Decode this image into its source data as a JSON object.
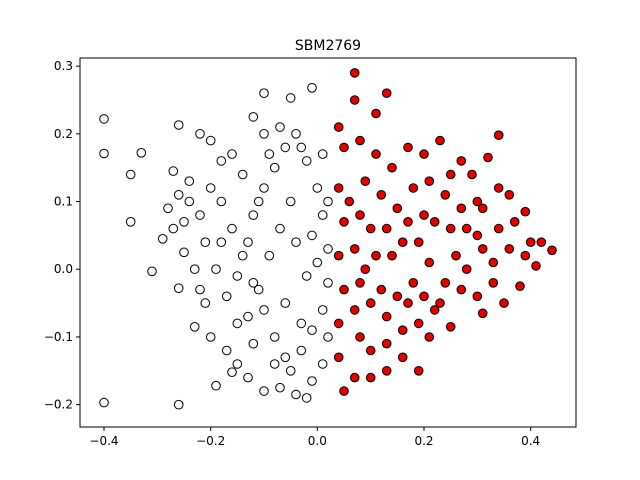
{
  "chart_data": {
    "type": "scatter",
    "title": "SBM2769",
    "xlabel": "",
    "ylabel": "",
    "xlim": [
      -0.445,
      0.485
    ],
    "ylim": [
      -0.233,
      0.312
    ],
    "x_ticks": [
      -0.4,
      -0.2,
      0.0,
      0.2,
      0.4
    ],
    "x_tick_labels": [
      "−0.4",
      "−0.2",
      "0.0",
      "0.2",
      "0.4"
    ],
    "y_ticks": [
      -0.2,
      -0.1,
      0.0,
      0.1,
      0.2,
      0.3
    ],
    "y_tick_labels": [
      "−0.2",
      "−0.1",
      "0.0",
      "0.1",
      "0.2",
      "0.3"
    ],
    "grid": false,
    "legend": "none",
    "colors": {
      "cluster_white": "#ffffff",
      "cluster_red": "#e00000",
      "edge": "#000000"
    },
    "series": [
      {
        "color": "#ffffff",
        "points": [
          [
            -0.4,
            -0.197
          ],
          [
            -0.4,
            0.222
          ],
          [
            -0.4,
            0.171
          ],
          [
            -0.35,
            0.14
          ],
          [
            -0.35,
            0.07
          ],
          [
            -0.33,
            0.172
          ],
          [
            -0.31,
            -0.003
          ],
          [
            -0.26,
            -0.2
          ],
          [
            -0.26,
            -0.028
          ],
          [
            -0.19,
            -0.172
          ],
          [
            -0.16,
            -0.152
          ],
          [
            -0.12,
            0.225
          ],
          [
            -0.1,
            0.26
          ],
          [
            -0.05,
            0.253
          ],
          [
            -0.01,
            0.268
          ],
          [
            -0.26,
            0.213
          ],
          [
            -0.27,
            0.145
          ],
          [
            -0.28,
            0.09
          ],
          [
            -0.29,
            0.045
          ],
          [
            -0.27,
            0.06
          ],
          [
            -0.25,
            0.025
          ],
          [
            -0.24,
            0.13
          ],
          [
            -0.22,
            0.2
          ],
          [
            -0.2,
            0.19
          ],
          [
            -0.18,
            0.16
          ],
          [
            -0.23,
            -0.085
          ],
          [
            -0.21,
            -0.05
          ],
          [
            -0.2,
            -0.1
          ],
          [
            -0.17,
            -0.12
          ],
          [
            -0.15,
            -0.14
          ],
          [
            -0.13,
            -0.16
          ],
          [
            -0.1,
            -0.18
          ],
          [
            -0.07,
            -0.175
          ],
          [
            -0.04,
            -0.185
          ],
          [
            -0.02,
            -0.19
          ],
          [
            -0.01,
            -0.165
          ],
          [
            -0.05,
            -0.15
          ],
          [
            -0.08,
            -0.14
          ],
          [
            -0.12,
            -0.11
          ],
          [
            -0.15,
            -0.08
          ],
          [
            -0.17,
            -0.04
          ],
          [
            -0.19,
            0.0
          ],
          [
            -0.21,
            0.04
          ],
          [
            -0.22,
            0.08
          ],
          [
            -0.2,
            0.12
          ],
          [
            -0.18,
            0.1
          ],
          [
            -0.16,
            0.06
          ],
          [
            -0.14,
            0.02
          ],
          [
            -0.12,
            -0.02
          ],
          [
            -0.1,
            -0.06
          ],
          [
            -0.08,
            -0.1
          ],
          [
            -0.06,
            -0.13
          ],
          [
            -0.03,
            -0.12
          ],
          [
            -0.01,
            -0.09
          ],
          [
            0.01,
            -0.06
          ],
          [
            0.02,
            -0.02
          ],
          [
            0.02,
            0.03
          ],
          [
            0.01,
            0.08
          ],
          [
            0.0,
            0.12
          ],
          [
            -0.02,
            0.16
          ],
          [
            -0.04,
            0.2
          ],
          [
            -0.06,
            0.18
          ],
          [
            -0.08,
            0.15
          ],
          [
            -0.1,
            0.12
          ],
          [
            -0.12,
            0.08
          ],
          [
            -0.14,
            0.14
          ],
          [
            -0.16,
            0.17
          ],
          [
            -0.1,
            0.2
          ],
          [
            -0.07,
            0.21
          ],
          [
            -0.03,
            0.18
          ],
          [
            -0.05,
            0.1
          ],
          [
            -0.07,
            0.06
          ],
          [
            -0.09,
            0.02
          ],
          [
            -0.11,
            -0.03
          ],
          [
            -0.13,
            -0.07
          ],
          [
            -0.04,
            0.04
          ],
          [
            -0.02,
            -0.01
          ],
          [
            -0.06,
            -0.05
          ],
          [
            -0.03,
            -0.08
          ],
          [
            0.0,
            0.01
          ],
          [
            -0.24,
            0.1
          ],
          [
            -0.23,
            0.0
          ],
          [
            -0.22,
            -0.03
          ],
          [
            -0.25,
            0.07
          ],
          [
            -0.26,
            0.11
          ],
          [
            -0.18,
            0.04
          ],
          [
            -0.15,
            -0.01
          ],
          [
            -0.13,
            0.04
          ],
          [
            -0.11,
            0.1
          ],
          [
            -0.09,
            0.17
          ],
          [
            0.01,
            0.17
          ],
          [
            0.02,
            0.1
          ],
          [
            0.02,
            -0.1
          ],
          [
            0.01,
            -0.14
          ],
          [
            -0.01,
            0.05
          ]
        ]
      },
      {
        "color": "#e00000",
        "points": [
          [
            0.07,
            0.29
          ],
          [
            0.13,
            0.26
          ],
          [
            0.07,
            0.25
          ],
          [
            0.11,
            0.23
          ],
          [
            0.04,
            0.21
          ],
          [
            0.34,
            0.198
          ],
          [
            0.32,
            0.165
          ],
          [
            0.36,
            0.11
          ],
          [
            0.39,
            0.085
          ],
          [
            0.42,
            0.04
          ],
          [
            0.44,
            0.028
          ],
          [
            0.41,
            0.005
          ],
          [
            0.38,
            -0.025
          ],
          [
            0.35,
            -0.05
          ],
          [
            0.31,
            -0.065
          ],
          [
            0.25,
            -0.085
          ],
          [
            0.21,
            -0.1
          ],
          [
            0.19,
            -0.15
          ],
          [
            0.16,
            -0.13
          ],
          [
            0.13,
            -0.15
          ],
          [
            0.1,
            -0.16
          ],
          [
            0.07,
            -0.16
          ],
          [
            0.05,
            -0.18
          ],
          [
            0.04,
            -0.13
          ],
          [
            0.04,
            -0.08
          ],
          [
            0.05,
            -0.03
          ],
          [
            0.04,
            0.02
          ],
          [
            0.05,
            0.07
          ],
          [
            0.04,
            0.12
          ],
          [
            0.05,
            0.18
          ],
          [
            0.08,
            0.19
          ],
          [
            0.11,
            0.17
          ],
          [
            0.14,
            0.15
          ],
          [
            0.17,
            0.18
          ],
          [
            0.2,
            0.17
          ],
          [
            0.23,
            0.19
          ],
          [
            0.27,
            0.16
          ],
          [
            0.29,
            0.14
          ],
          [
            0.3,
            0.1
          ],
          [
            0.28,
            0.06
          ],
          [
            0.26,
            0.02
          ],
          [
            0.24,
            -0.02
          ],
          [
            0.22,
            -0.06
          ],
          [
            0.19,
            -0.08
          ],
          [
            0.16,
            -0.09
          ],
          [
            0.13,
            -0.11
          ],
          [
            0.1,
            -0.12
          ],
          [
            0.08,
            -0.1
          ],
          [
            0.07,
            -0.06
          ],
          [
            0.08,
            -0.02
          ],
          [
            0.07,
            0.03
          ],
          [
            0.08,
            0.08
          ],
          [
            0.09,
            0.13
          ],
          [
            0.12,
            0.11
          ],
          [
            0.15,
            0.09
          ],
          [
            0.18,
            0.12
          ],
          [
            0.21,
            0.13
          ],
          [
            0.24,
            0.11
          ],
          [
            0.22,
            0.07
          ],
          [
            0.19,
            0.04
          ],
          [
            0.16,
            0.04
          ],
          [
            0.13,
            0.06
          ],
          [
            0.11,
            0.02
          ],
          [
            0.12,
            -0.03
          ],
          [
            0.15,
            -0.04
          ],
          [
            0.18,
            -0.02
          ],
          [
            0.21,
            0.01
          ],
          [
            0.25,
            0.06
          ],
          [
            0.28,
            0.0
          ],
          [
            0.31,
            0.03
          ],
          [
            0.34,
            0.06
          ],
          [
            0.33,
            0.01
          ],
          [
            0.36,
            0.03
          ],
          [
            0.39,
            0.02
          ],
          [
            0.37,
            0.07
          ],
          [
            0.34,
            0.12
          ],
          [
            0.31,
            0.09
          ],
          [
            0.3,
            0.05
          ],
          [
            0.27,
            0.09
          ],
          [
            0.25,
            0.14
          ],
          [
            0.2,
            0.08
          ],
          [
            0.17,
            0.07
          ],
          [
            0.14,
            0.02
          ],
          [
            0.1,
            0.06
          ],
          [
            0.09,
            0.0
          ],
          [
            0.1,
            -0.05
          ],
          [
            0.13,
            -0.07
          ],
          [
            0.17,
            -0.05
          ],
          [
            0.2,
            -0.04
          ],
          [
            0.23,
            -0.05
          ],
          [
            0.27,
            -0.03
          ],
          [
            0.3,
            -0.04
          ],
          [
            0.33,
            -0.02
          ],
          [
            0.4,
            0.04
          ],
          [
            0.06,
            0.1
          ]
        ]
      }
    ]
  }
}
